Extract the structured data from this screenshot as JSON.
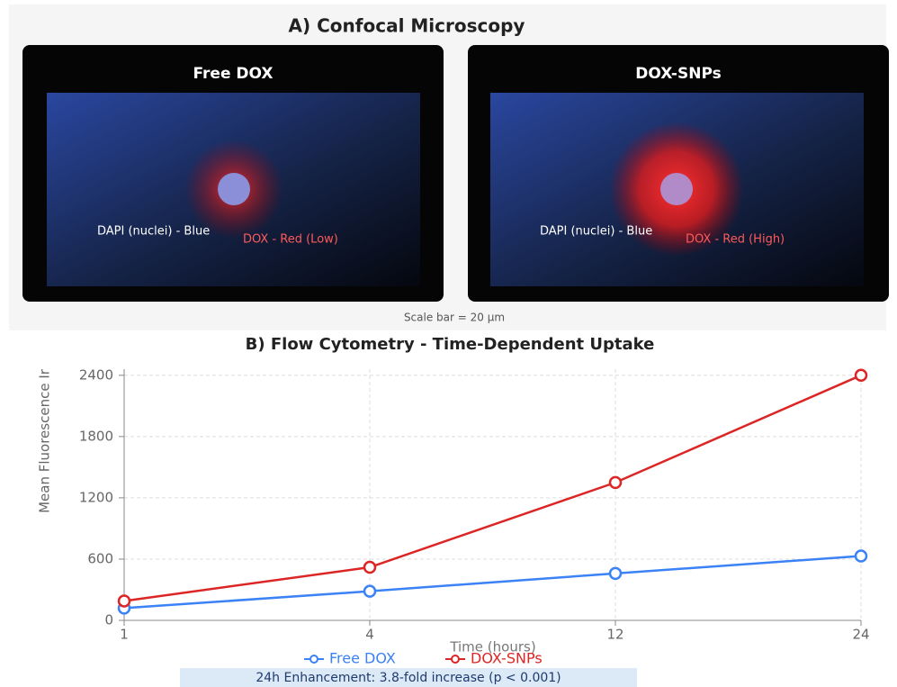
{
  "confocal": {
    "title": "A) Confocal Microscopy",
    "panels": [
      {
        "title": "Free DOX",
        "dapi_label": "DAPI (nuclei) - Blue",
        "dox_label": "DOX - Red (Low)"
      },
      {
        "title": "DOX-SNPs",
        "dapi_label": "DAPI (nuclei) - Blue",
        "dox_label": "DOX - Red (High)"
      }
    ],
    "scale_bar": "Scale bar = 20 μm"
  },
  "chart_data": {
    "type": "line",
    "title": "B) Flow Cytometry - Time-Dependent Uptake",
    "x_label": "Time (hours)",
    "y_label": "Mean Fluorescence Ir",
    "categories": [
      "1",
      "4",
      "12",
      "24"
    ],
    "series": [
      {
        "name": "Free DOX",
        "color": "#3b82f6",
        "values": [
          120,
          285,
          460,
          630
        ]
      },
      {
        "name": "DOX-SNPs",
        "color": "#dc2626",
        "values": [
          190,
          520,
          1350,
          2400
        ]
      }
    ],
    "ylim": [
      0,
      2460
    ],
    "yticks": [
      0,
      600,
      1200,
      1800,
      2400
    ],
    "grid": true,
    "annotation": "24h Enhancement: 3.8-fold increase (p < 0.001)"
  }
}
